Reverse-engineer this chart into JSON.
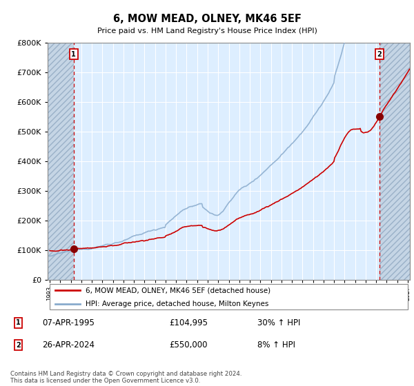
{
  "title": "6, MOW MEAD, OLNEY, MK46 5EF",
  "subtitle": "Price paid vs. HM Land Registry's House Price Index (HPI)",
  "ylim": [
    0,
    800000
  ],
  "yticks": [
    0,
    100000,
    200000,
    300000,
    400000,
    500000,
    600000,
    700000,
    800000
  ],
  "ytick_labels": [
    "£0",
    "£100K",
    "£200K",
    "£300K",
    "£400K",
    "£500K",
    "£600K",
    "£700K",
    "£800K"
  ],
  "sale1_x": 1995.27,
  "sale1_price": 104995,
  "sale1_label": "07-APR-1995",
  "sale1_price_str": "£104,995",
  "sale1_hpi_str": "30% ↑ HPI",
  "sale2_x": 2024.32,
  "sale2_price": 550000,
  "sale2_label": "26-APR-2024",
  "sale2_price_str": "£550,000",
  "sale2_hpi_str": "8% ↑ HPI",
  "property_label": "6, MOW MEAD, OLNEY, MK46 5EF (detached house)",
  "hpi_label": "HPI: Average price, detached house, Milton Keynes",
  "footer": "Contains HM Land Registry data © Crown copyright and database right 2024.\nThis data is licensed under the Open Government Licence v3.0.",
  "line_color": "#cc0000",
  "hpi_color": "#88aacc",
  "bg_color": "#ddeeff",
  "hatch_bg": "#c5d5e5",
  "grid_color": "#ffffff",
  "vline_color": "#cc0000",
  "xlim_left": 1992.8,
  "xlim_right": 2027.2
}
